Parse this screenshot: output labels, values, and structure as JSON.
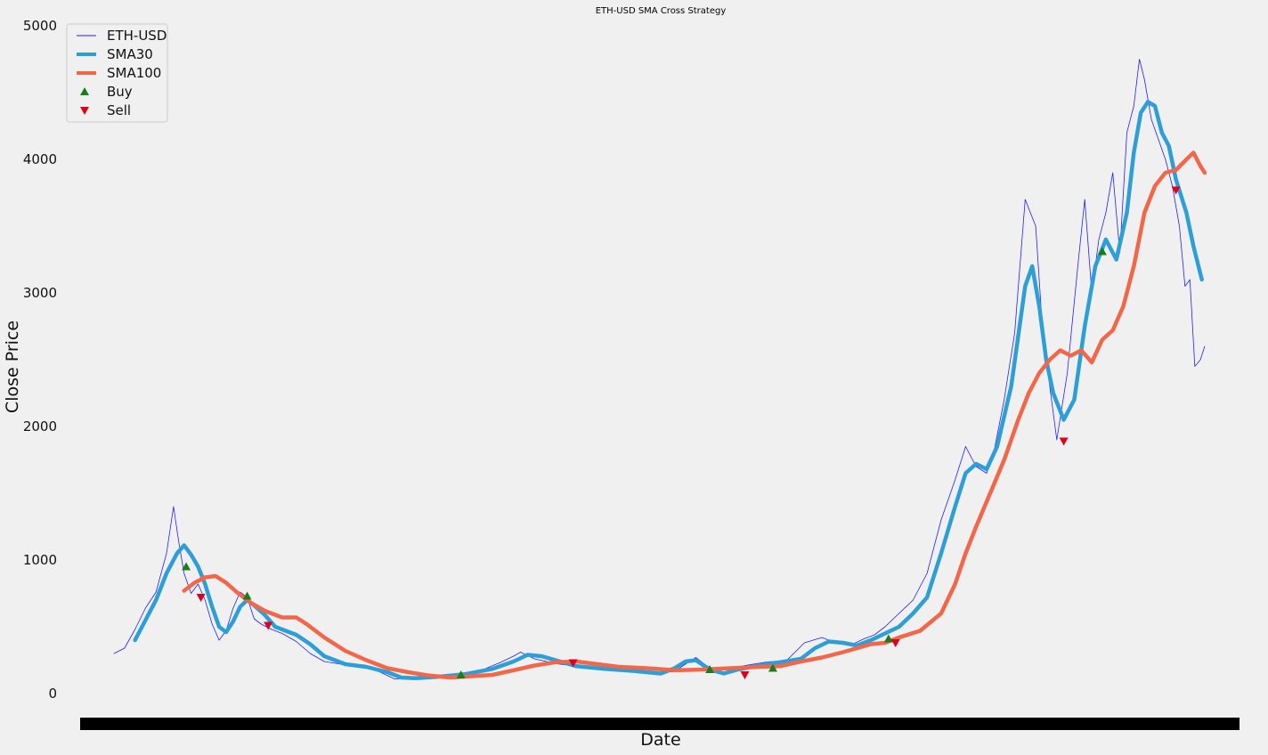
{
  "chart_data": {
    "type": "line",
    "title": "ETH-USD SMA Cross Strategy",
    "xlabel": "Date",
    "ylabel": "Close Price",
    "ylim": [
      0,
      5000
    ],
    "yticks": [
      "0",
      "1000",
      "2000",
      "3000",
      "4000",
      "5000"
    ],
    "x_range_index": [
      0,
      1560
    ],
    "grid": false,
    "legend": {
      "placement": "top-left",
      "entries": [
        "ETH-USD",
        "SMA30",
        "SMA100",
        "Buy",
        "Sell"
      ]
    },
    "colors": {
      "price": "#1f1fff",
      "sma30": "#2e9fd6",
      "sma100": "#f2674a",
      "buy": "#1a7d1a",
      "sell": "#e0001b",
      "background": "#f0f0f0"
    },
    "series": [
      {
        "name": "ETH-USD",
        "points": [
          [
            0,
            300
          ],
          [
            15,
            340
          ],
          [
            30,
            480
          ],
          [
            45,
            640
          ],
          [
            60,
            760
          ],
          [
            75,
            1050
          ],
          [
            85,
            1400
          ],
          [
            92,
            1150
          ],
          [
            100,
            900
          ],
          [
            110,
            750
          ],
          [
            120,
            820
          ],
          [
            130,
            700
          ],
          [
            140,
            520
          ],
          [
            150,
            400
          ],
          [
            160,
            470
          ],
          [
            170,
            640
          ],
          [
            180,
            760
          ],
          [
            190,
            720
          ],
          [
            200,
            560
          ],
          [
            210,
            520
          ],
          [
            225,
            480
          ],
          [
            240,
            450
          ],
          [
            260,
            390
          ],
          [
            280,
            300
          ],
          [
            300,
            240
          ],
          [
            330,
            215
          ],
          [
            360,
            195
          ],
          [
            380,
            160
          ],
          [
            400,
            110
          ],
          [
            430,
            115
          ],
          [
            460,
            130
          ],
          [
            490,
            145
          ],
          [
            520,
            165
          ],
          [
            550,
            230
          ],
          [
            570,
            280
          ],
          [
            580,
            310
          ],
          [
            600,
            260
          ],
          [
            630,
            225
          ],
          [
            660,
            205
          ],
          [
            690,
            190
          ],
          [
            720,
            185
          ],
          [
            740,
            175
          ],
          [
            760,
            170
          ],
          [
            780,
            160
          ],
          [
            800,
            165
          ],
          [
            815,
            220
          ],
          [
            830,
            270
          ],
          [
            845,
            210
          ],
          [
            860,
            170
          ],
          [
            880,
            190
          ],
          [
            900,
            210
          ],
          [
            930,
            235
          ],
          [
            960,
            250
          ],
          [
            985,
            380
          ],
          [
            1010,
            420
          ],
          [
            1030,
            380
          ],
          [
            1050,
            360
          ],
          [
            1070,
            410
          ],
          [
            1085,
            440
          ],
          [
            1100,
            500
          ],
          [
            1120,
            600
          ],
          [
            1140,
            700
          ],
          [
            1160,
            900
          ],
          [
            1180,
            1300
          ],
          [
            1200,
            1600
          ],
          [
            1215,
            1850
          ],
          [
            1230,
            1700
          ],
          [
            1245,
            1650
          ],
          [
            1255,
            1800
          ],
          [
            1270,
            2200
          ],
          [
            1285,
            2700
          ],
          [
            1300,
            3700
          ],
          [
            1315,
            3500
          ],
          [
            1325,
            2700
          ],
          [
            1335,
            2300
          ],
          [
            1345,
            1900
          ],
          [
            1360,
            2400
          ],
          [
            1375,
            3200
          ],
          [
            1385,
            3700
          ],
          [
            1395,
            3000
          ],
          [
            1405,
            3400
          ],
          [
            1415,
            3600
          ],
          [
            1425,
            3900
          ],
          [
            1435,
            3300
          ],
          [
            1445,
            4200
          ],
          [
            1455,
            4400
          ],
          [
            1463,
            4750
          ],
          [
            1470,
            4600
          ],
          [
            1480,
            4300
          ],
          [
            1490,
            4150
          ],
          [
            1500,
            4000
          ],
          [
            1510,
            3800
          ],
          [
            1520,
            3500
          ],
          [
            1528,
            3050
          ],
          [
            1535,
            3100
          ],
          [
            1542,
            2450
          ],
          [
            1550,
            2500
          ],
          [
            1556,
            2600
          ]
        ]
      },
      {
        "name": "SMA30",
        "points": [
          [
            30,
            400
          ],
          [
            45,
            550
          ],
          [
            60,
            700
          ],
          [
            75,
            900
          ],
          [
            90,
            1050
          ],
          [
            100,
            1110
          ],
          [
            110,
            1040
          ],
          [
            120,
            950
          ],
          [
            130,
            820
          ],
          [
            140,
            650
          ],
          [
            150,
            500
          ],
          [
            160,
            460
          ],
          [
            170,
            540
          ],
          [
            180,
            650
          ],
          [
            190,
            700
          ],
          [
            200,
            660
          ],
          [
            215,
            590
          ],
          [
            230,
            500
          ],
          [
            245,
            470
          ],
          [
            260,
            440
          ],
          [
            280,
            370
          ],
          [
            300,
            280
          ],
          [
            330,
            220
          ],
          [
            360,
            200
          ],
          [
            390,
            160
          ],
          [
            410,
            120
          ],
          [
            430,
            115
          ],
          [
            460,
            125
          ],
          [
            500,
            145
          ],
          [
            540,
            185
          ],
          [
            570,
            240
          ],
          [
            590,
            290
          ],
          [
            610,
            280
          ],
          [
            630,
            250
          ],
          [
            660,
            205
          ],
          [
            700,
            185
          ],
          [
            740,
            170
          ],
          [
            780,
            150
          ],
          [
            800,
            190
          ],
          [
            815,
            240
          ],
          [
            830,
            250
          ],
          [
            850,
            180
          ],
          [
            870,
            150
          ],
          [
            890,
            180
          ],
          [
            920,
            210
          ],
          [
            950,
            235
          ],
          [
            980,
            260
          ],
          [
            1000,
            340
          ],
          [
            1020,
            390
          ],
          [
            1040,
            380
          ],
          [
            1060,
            360
          ],
          [
            1080,
            400
          ],
          [
            1100,
            450
          ],
          [
            1120,
            500
          ],
          [
            1140,
            600
          ],
          [
            1160,
            720
          ],
          [
            1180,
            1050
          ],
          [
            1200,
            1400
          ],
          [
            1215,
            1650
          ],
          [
            1230,
            1720
          ],
          [
            1245,
            1680
          ],
          [
            1260,
            1850
          ],
          [
            1280,
            2300
          ],
          [
            1300,
            3050
          ],
          [
            1310,
            3200
          ],
          [
            1320,
            2900
          ],
          [
            1330,
            2500
          ],
          [
            1340,
            2250
          ],
          [
            1355,
            2050
          ],
          [
            1370,
            2200
          ],
          [
            1385,
            2750
          ],
          [
            1400,
            3200
          ],
          [
            1415,
            3400
          ],
          [
            1430,
            3250
          ],
          [
            1445,
            3600
          ],
          [
            1455,
            4050
          ],
          [
            1465,
            4350
          ],
          [
            1475,
            4430
          ],
          [
            1485,
            4400
          ],
          [
            1495,
            4200
          ],
          [
            1505,
            4100
          ],
          [
            1515,
            3850
          ],
          [
            1530,
            3600
          ],
          [
            1540,
            3350
          ],
          [
            1552,
            3100
          ]
        ]
      },
      {
        "name": "SMA100",
        "points": [
          [
            100,
            770
          ],
          [
            115,
            830
          ],
          [
            130,
            870
          ],
          [
            145,
            880
          ],
          [
            160,
            830
          ],
          [
            175,
            760
          ],
          [
            195,
            680
          ],
          [
            215,
            620
          ],
          [
            240,
            570
          ],
          [
            260,
            570
          ],
          [
            275,
            520
          ],
          [
            300,
            420
          ],
          [
            330,
            320
          ],
          [
            360,
            250
          ],
          [
            390,
            190
          ],
          [
            420,
            160
          ],
          [
            450,
            135
          ],
          [
            480,
            120
          ],
          [
            510,
            130
          ],
          [
            540,
            140
          ],
          [
            570,
            175
          ],
          [
            600,
            210
          ],
          [
            630,
            235
          ],
          [
            660,
            240
          ],
          [
            690,
            220
          ],
          [
            720,
            200
          ],
          [
            760,
            190
          ],
          [
            800,
            175
          ],
          [
            840,
            180
          ],
          [
            880,
            190
          ],
          [
            920,
            200
          ],
          [
            950,
            205
          ],
          [
            980,
            240
          ],
          [
            1010,
            270
          ],
          [
            1040,
            310
          ],
          [
            1060,
            340
          ],
          [
            1080,
            370
          ],
          [
            1100,
            380
          ],
          [
            1120,
            420
          ],
          [
            1150,
            470
          ],
          [
            1180,
            600
          ],
          [
            1200,
            820
          ],
          [
            1215,
            1050
          ],
          [
            1230,
            1250
          ],
          [
            1250,
            1500
          ],
          [
            1270,
            1750
          ],
          [
            1290,
            2050
          ],
          [
            1305,
            2250
          ],
          [
            1320,
            2400
          ],
          [
            1335,
            2500
          ],
          [
            1350,
            2570
          ],
          [
            1365,
            2530
          ],
          [
            1380,
            2570
          ],
          [
            1395,
            2480
          ],
          [
            1410,
            2650
          ],
          [
            1425,
            2720
          ],
          [
            1440,
            2900
          ],
          [
            1455,
            3200
          ],
          [
            1470,
            3600
          ],
          [
            1485,
            3800
          ],
          [
            1500,
            3900
          ],
          [
            1515,
            3920
          ],
          [
            1530,
            4000
          ],
          [
            1540,
            4050
          ],
          [
            1550,
            3950
          ],
          [
            1556,
            3900
          ]
        ]
      }
    ],
    "buy_signals": [
      [
        103,
        950
      ],
      [
        190,
        730
      ],
      [
        495,
        140
      ],
      [
        850,
        180
      ],
      [
        940,
        190
      ],
      [
        1105,
        410
      ],
      [
        1410,
        3310
      ]
    ],
    "sell_signals": [
      [
        124,
        720
      ],
      [
        220,
        510
      ],
      [
        655,
        230
      ],
      [
        900,
        140
      ],
      [
        1115,
        380
      ],
      [
        1355,
        1890
      ],
      [
        1515,
        3770
      ]
    ]
  }
}
